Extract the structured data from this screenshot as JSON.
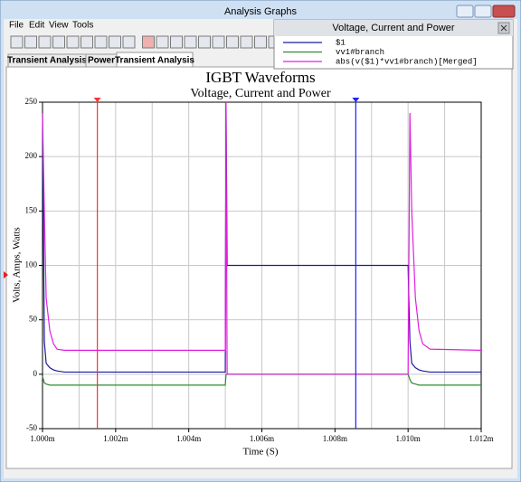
{
  "window": {
    "title": "Analysis Graphs",
    "menu": [
      "File",
      "Edit",
      "View",
      "Tools"
    ],
    "tabs": [
      "Transient Analysis",
      "Power",
      "Transient Analysis"
    ]
  },
  "legend_panel": {
    "title": "Voltage, Current and Power"
  },
  "chart_data": {
    "type": "line",
    "title": "IGBT Waveforms",
    "subtitle": "Voltage, Current and Power",
    "xlabel": "Time (S)",
    "ylabel": "Volts, Amps, Watts",
    "x": [
      0.001,
      0.00100005,
      0.0010001,
      0.0010002,
      0.0010003,
      0.0010004,
      0.0010006,
      0.001005,
      0.00100502,
      0.00100505,
      0.0010051,
      0.00101,
      0.00101005,
      0.0010101,
      0.0010102,
      0.0010103,
      0.0010104,
      0.0010106,
      0.001012
    ],
    "series": [
      {
        "name": "$1",
        "color": "#1a1aa0",
        "values": [
          240,
          30,
          10,
          6,
          4,
          3,
          2,
          2,
          250,
          100,
          100,
          100,
          30,
          10,
          6,
          4,
          3,
          2,
          2
        ]
      },
      {
        "name": "vv1#branch",
        "color": "#2e8b2e",
        "values": [
          -2,
          -8,
          -9,
          -10,
          -10,
          -10,
          -10,
          -10,
          0,
          0,
          0,
          0,
          -5,
          -8,
          -9,
          -10,
          -10,
          -10,
          -10
        ]
      },
      {
        "name": "abs(v($1)*vv1#branch)[Merged]",
        "color": "#e020e0",
        "values": [
          240,
          150,
          70,
          40,
          28,
          23,
          22,
          22,
          250,
          0,
          0,
          0,
          240,
          150,
          70,
          40,
          28,
          23,
          22
        ]
      }
    ],
    "xlim": [
      0.001,
      0.001012
    ],
    "ylim": [
      -50,
      250
    ],
    "xticks": [
      {
        "value": 0.001,
        "label": "1.000m"
      },
      {
        "value": 0.001002,
        "label": "1.002m"
      },
      {
        "value": 0.001004,
        "label": "1.004m"
      },
      {
        "value": 0.001006,
        "label": "1.006m"
      },
      {
        "value": 0.001008,
        "label": "1.008m"
      },
      {
        "value": 0.00101,
        "label": "1.010m"
      },
      {
        "value": 0.001012,
        "label": "1.012m"
      }
    ],
    "xgrid": [
      0.001001,
      0.001003,
      0.001005,
      0.001007,
      0.001009,
      0.001011
    ],
    "yticks": [
      250,
      200,
      150,
      100,
      50,
      0,
      -50
    ],
    "grid": true,
    "cursors": [
      {
        "color": "#ff3030",
        "x": 0.0010015
      },
      {
        "color": "#2020ff",
        "x": 0.00100857
      }
    ]
  }
}
